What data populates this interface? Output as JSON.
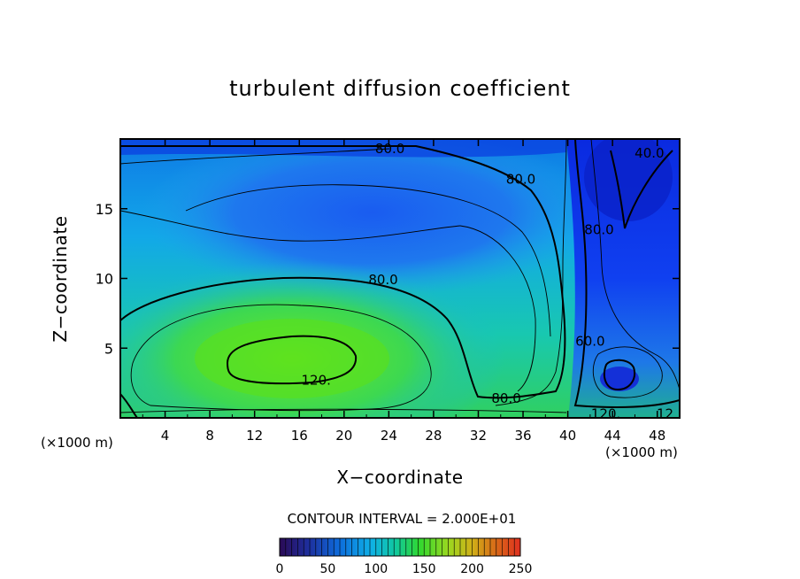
{
  "chart_data": {
    "type": "heatmap",
    "title": "turbulent diffusion coefficient",
    "xlabel": "X−coordinate",
    "ylabel": "Z−coordinate",
    "x_unit": "(×1000 m)",
    "xlim": [
      0,
      50
    ],
    "ylim": [
      0,
      20
    ],
    "x_ticks": [
      4,
      8,
      12,
      16,
      20,
      24,
      28,
      32,
      36,
      40,
      44,
      48
    ],
    "y_ticks": [
      5,
      10,
      15
    ],
    "contour_interval_text": "CONTOUR INTERVAL = 2.000E+01",
    "colorbar": {
      "range": [
        0,
        250
      ],
      "tick_labels": [
        0,
        50,
        100,
        150,
        200,
        250
      ],
      "colors": [
        "#2a0a55",
        "#1e2f9e",
        "#0d6ddc",
        "#0fb0e6",
        "#10c8a0",
        "#30d830",
        "#9ad820",
        "#d0b018",
        "#d86818",
        "#e03020"
      ]
    },
    "contour_labels": [
      {
        "text": "80.0",
        "x": 23.5,
        "y": 9.9
      },
      {
        "text": "120.",
        "x": 17.5,
        "y": 2.7
      },
      {
        "text": "80.0",
        "x": 34.5,
        "y": 1.4
      },
      {
        "text": "80.0",
        "x": 35.8,
        "y": 17.1
      },
      {
        "text": "80.0",
        "x": 24.1,
        "y": 19.3
      },
      {
        "text": "80.0",
        "x": 42.8,
        "y": 13.5
      },
      {
        "text": "40.0",
        "x": 47.3,
        "y": 19.0
      },
      {
        "text": "60.0",
        "x": 42.0,
        "y": 5.5
      },
      {
        "text": "120.",
        "x": 43.4,
        "y": 0.3
      },
      {
        "text": "12",
        "x": 48.7,
        "y": 0.3
      }
    ],
    "grid": false,
    "legend": "colorbar-bottom"
  }
}
